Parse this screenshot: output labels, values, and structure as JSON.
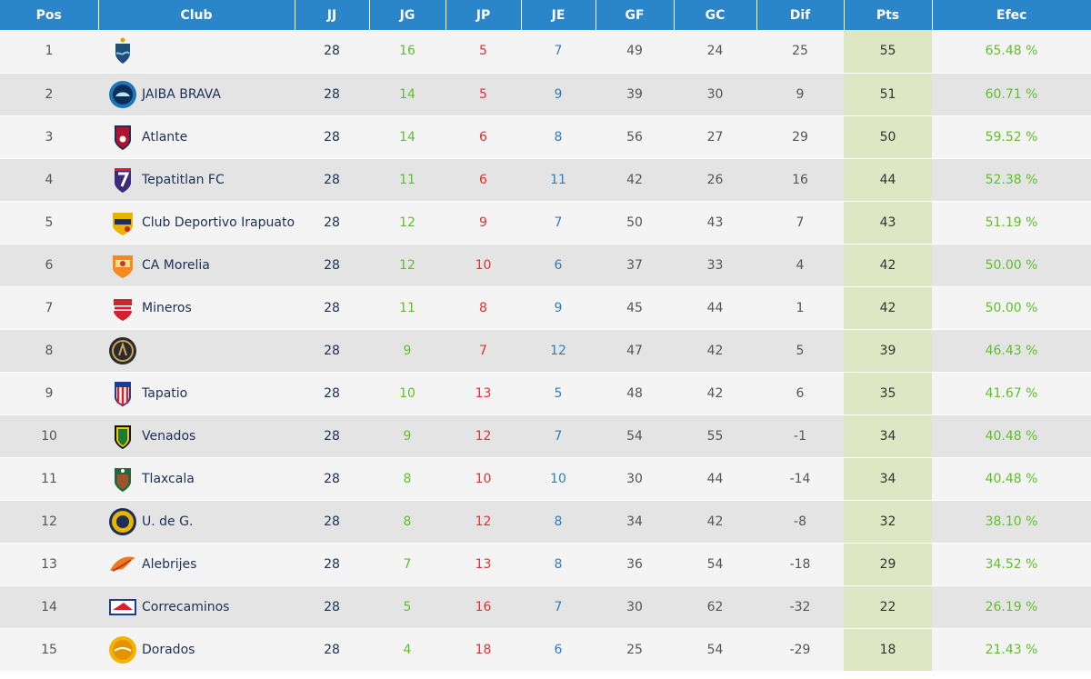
{
  "columns": {
    "pos": "Pos",
    "club": "Club",
    "jj": "JJ",
    "jg": "JG",
    "jp": "JP",
    "je": "JE",
    "gf": "GF",
    "gc": "GC",
    "dif": "Dif",
    "pts": "Pts",
    "efec": "Efec"
  },
  "rows": [
    {
      "pos": "1",
      "club": "",
      "logo": "crest-blue-waves-icon",
      "jj": "28",
      "jg": "16",
      "jp": "5",
      "je": "7",
      "gf": "49",
      "gc": "24",
      "dif": "25",
      "pts": "55",
      "efec": "65.48 %"
    },
    {
      "pos": "2",
      "club": "JAIBA BRAVA",
      "logo": "crab-badge-icon",
      "jj": "28",
      "jg": "14",
      "jp": "5",
      "je": "9",
      "gf": "39",
      "gc": "30",
      "dif": "9",
      "pts": "51",
      "efec": "60.71 %"
    },
    {
      "pos": "3",
      "club": "Atlante",
      "logo": "atlante-shield-icon",
      "jj": "28",
      "jg": "14",
      "jp": "6",
      "je": "8",
      "gf": "56",
      "gc": "27",
      "dif": "29",
      "pts": "50",
      "efec": "59.52 %"
    },
    {
      "pos": "4",
      "club": "Tepatitlan FC",
      "logo": "tepatitlan-shield-icon",
      "jj": "28",
      "jg": "11",
      "jp": "6",
      "je": "11",
      "gf": "42",
      "gc": "26",
      "dif": "16",
      "pts": "44",
      "efec": "52.38 %"
    },
    {
      "pos": "5",
      "club": "Club Deportivo Irapuato",
      "logo": "irapuato-crest-icon",
      "jj": "28",
      "jg": "12",
      "jp": "9",
      "je": "7",
      "gf": "50",
      "gc": "43",
      "dif": "7",
      "pts": "43",
      "efec": "51.19 %"
    },
    {
      "pos": "6",
      "club": "CA Morelia",
      "logo": "morelia-crest-icon",
      "jj": "28",
      "jg": "12",
      "jp": "10",
      "je": "6",
      "gf": "37",
      "gc": "33",
      "dif": "4",
      "pts": "42",
      "efec": "50.00 %"
    },
    {
      "pos": "7",
      "club": "Mineros",
      "logo": "mineros-crest-icon",
      "jj": "28",
      "jg": "11",
      "jp": "8",
      "je": "9",
      "gf": "45",
      "gc": "44",
      "dif": "1",
      "pts": "42",
      "efec": "50.00 %"
    },
    {
      "pos": "8",
      "club": "",
      "logo": "round-dark-crest-icon",
      "jj": "28",
      "jg": "9",
      "jp": "7",
      "je": "12",
      "gf": "47",
      "gc": "42",
      "dif": "5",
      "pts": "39",
      "efec": "46.43 %"
    },
    {
      "pos": "9",
      "club": "Tapatio",
      "logo": "tapatio-shield-icon",
      "jj": "28",
      "jg": "10",
      "jp": "13",
      "je": "5",
      "gf": "48",
      "gc": "42",
      "dif": "6",
      "pts": "35",
      "efec": "41.67 %"
    },
    {
      "pos": "10",
      "club": "Venados",
      "logo": "venados-shield-icon",
      "jj": "28",
      "jg": "9",
      "jp": "12",
      "je": "7",
      "gf": "54",
      "gc": "55",
      "dif": "-1",
      "pts": "34",
      "efec": "40.48 %"
    },
    {
      "pos": "11",
      "club": "Tlaxcala",
      "logo": "tlaxcala-shield-icon",
      "jj": "28",
      "jg": "8",
      "jp": "10",
      "je": "10",
      "gf": "30",
      "gc": "44",
      "dif": "-14",
      "pts": "34",
      "efec": "40.48 %"
    },
    {
      "pos": "12",
      "club": "U. de G.",
      "logo": "udg-round-crest-icon",
      "jj": "28",
      "jg": "8",
      "jp": "12",
      "je": "8",
      "gf": "34",
      "gc": "42",
      "dif": "-8",
      "pts": "32",
      "efec": "38.10 %"
    },
    {
      "pos": "13",
      "club": "Alebrijes",
      "logo": "alebrijes-crest-icon",
      "jj": "28",
      "jg": "7",
      "jp": "13",
      "je": "8",
      "gf": "36",
      "gc": "54",
      "dif": "-18",
      "pts": "29",
      "efec": "34.52 %"
    },
    {
      "pos": "14",
      "club": "Correcaminos",
      "logo": "correcaminos-badge-icon",
      "jj": "28",
      "jg": "5",
      "jp": "16",
      "je": "7",
      "gf": "30",
      "gc": "62",
      "dif": "-32",
      "pts": "22",
      "efec": "26.19 %"
    },
    {
      "pos": "15",
      "club": "Dorados",
      "logo": "dorados-round-crest-icon",
      "jj": "28",
      "jg": "4",
      "jp": "18",
      "je": "6",
      "gf": "25",
      "gc": "54",
      "dif": "-29",
      "pts": "18",
      "efec": "21.43 %"
    }
  ],
  "colors": {
    "header_bg": "#2b85c9",
    "wins": "#5fbf2a",
    "losses": "#e03131",
    "draws": "#2f7fbf",
    "points_column_bg": "#dde7c3",
    "club_name": "#1c2f56"
  }
}
